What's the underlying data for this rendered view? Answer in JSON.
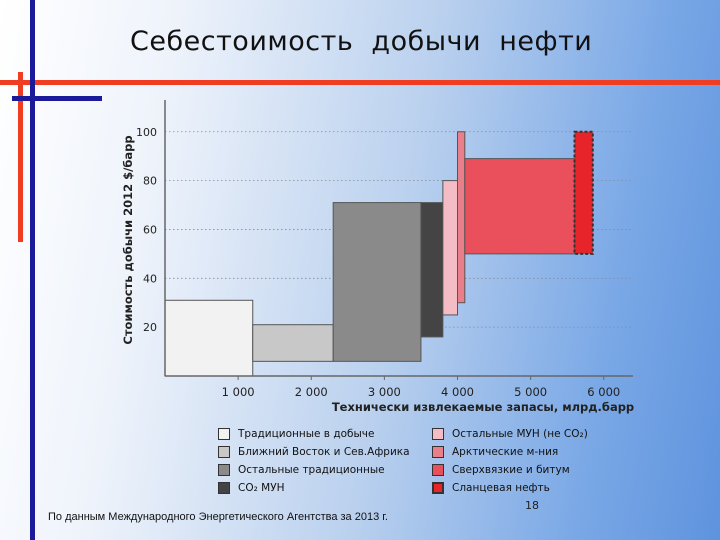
{
  "slide": {
    "title": "Себестоимость  добычи  нефти",
    "footnote": "По данным Международного Энергетического Агентства за 2013 г.",
    "page_number": "18"
  },
  "colors": {
    "deco_red": "#f03c20",
    "deco_blue": "#1a1a9a"
  },
  "chart_data": {
    "type": "bar",
    "subtype": "variable-width supply cost curve (floating ranges)",
    "xlabel": "Технически извлекаемые запасы, млрд.барр",
    "ylabel": "Стоимость добычи 2012 $/барр",
    "x_ticks": [
      "1 000",
      "2 000",
      "3 000",
      "4 000",
      "5 000",
      "6 000"
    ],
    "x_tick_values": [
      1000,
      2000,
      3000,
      4000,
      5000,
      6000
    ],
    "y_ticks": [
      "20",
      "40",
      "60",
      "80",
      "100"
    ],
    "y_tick_values": [
      20,
      40,
      60,
      80,
      100
    ],
    "xlim": [
      0,
      6400
    ],
    "ylim": [
      0,
      113
    ],
    "grid": "horizontal dotted",
    "series": [
      {
        "name": "Традиционные в добыче",
        "color": "#f2f2f2",
        "x_start": 0,
        "x_end": 1200,
        "y_low": 0,
        "y_high": 31
      },
      {
        "name": "Ближний Восток и Сев.Африка",
        "color": "#c8c8c8",
        "x_start": 1200,
        "x_end": 2300,
        "y_low": 6,
        "y_high": 21
      },
      {
        "name": "Остальные традиционные",
        "color": "#8a8a8a",
        "x_start": 2300,
        "x_end": 3500,
        "y_low": 6,
        "y_high": 71
      },
      {
        "name": "CO₂ МУН",
        "color": "#444444",
        "x_start": 3500,
        "x_end": 3800,
        "y_low": 16,
        "y_high": 71
      },
      {
        "name": "Остальные МУН (не CO₂)",
        "color": "#f4bcc4",
        "x_start": 3800,
        "x_end": 4000,
        "y_low": 25,
        "y_high": 80
      },
      {
        "name": "Арктические м-ния",
        "color": "#e87f8a",
        "x_start": 4000,
        "x_end": 4100,
        "y_low": 30,
        "y_high": 100
      },
      {
        "name": "Сверхвязкие и битум",
        "color": "#e9505c",
        "x_start": 4100,
        "x_end": 5600,
        "y_low": 50,
        "y_high": 89
      },
      {
        "name": "Сланцевая нефть",
        "color": "#e8242b",
        "x_start": 5600,
        "x_end": 5850,
        "y_low": 50,
        "y_high": 100,
        "dashed": true
      }
    ]
  }
}
